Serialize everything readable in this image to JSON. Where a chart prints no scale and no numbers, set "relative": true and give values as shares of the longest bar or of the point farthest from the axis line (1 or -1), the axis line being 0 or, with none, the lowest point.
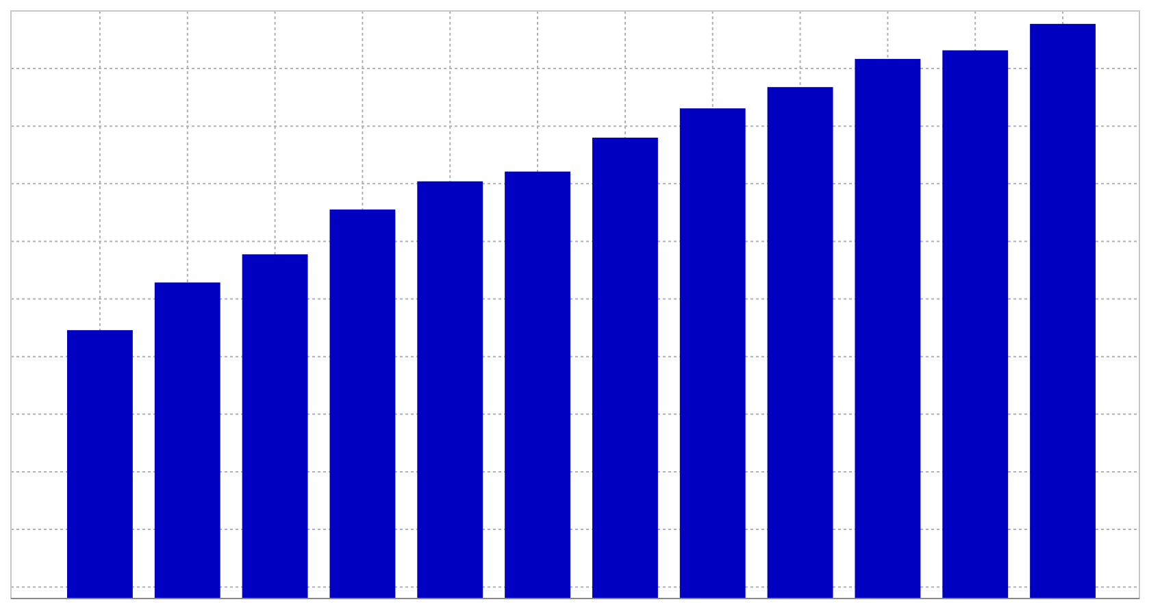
{
  "chart_data": {
    "type": "bar",
    "relative": true,
    "categories": [
      null,
      null,
      null,
      null,
      null,
      null,
      null,
      null,
      null,
      null,
      null,
      null
    ],
    "values": [
      0.467,
      0.55,
      0.599,
      0.677,
      0.726,
      0.743,
      0.802,
      0.853,
      0.89,
      0.939,
      0.954,
      1
    ],
    "color": "#0000c0",
    "grid": true
  }
}
